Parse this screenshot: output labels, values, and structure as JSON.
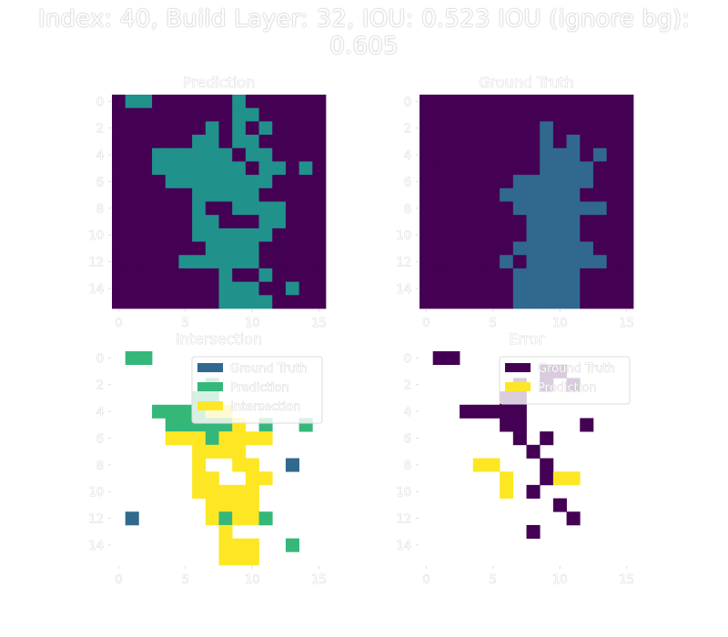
{
  "figure": {
    "suptitle": "Index: 40, Build Layer: 32, IOU: 0.523 IOU (ignore bg): 0.605",
    "text_color": "#ffffff",
    "text_outline": "#bdbdbd"
  },
  "chart_data": [
    {
      "type": "heatmap",
      "title": "Prediction",
      "rows": 16,
      "cols": 16,
      "xlim": [
        -0.5,
        15.5
      ],
      "ylim": [
        15.5,
        -0.5
      ],
      "xticks": [
        0,
        5,
        10,
        15
      ],
      "yticks": [
        0,
        2,
        4,
        6,
        8,
        10,
        12,
        14
      ],
      "colors": {
        "0": "#440154",
        "1": "#21918c"
      },
      "grid": [
        "0110000001000000",
        "0000000001100000",
        "0000000101010000",
        "0000001101100000",
        "0001111110110000",
        "0001111111011010",
        "0000111111110000",
        "0000001111100000",
        "0000001001111000",
        "0000001100011000",
        "0000001111110000",
        "0000000111100000",
        "0000011111100000",
        "0000000010010000",
        "0000000011100100",
        "0000000011110000"
      ]
    },
    {
      "type": "heatmap",
      "title": "Ground Truth",
      "rows": 16,
      "cols": 16,
      "xlim": [
        -0.5,
        15.5
      ],
      "ylim": [
        15.5,
        -0.5
      ],
      "xticks": [
        0,
        5,
        10,
        15
      ],
      "yticks": [
        0,
        2,
        4,
        6,
        8,
        10,
        12,
        14
      ],
      "colors": {
        "0": "#440154",
        "1": "#31688e"
      },
      "grid": [
        "0000000000000000",
        "0000000000000000",
        "0000000001000000",
        "0000000001010000",
        "0000000001110100",
        "0000000001111000",
        "0000000111111000",
        "0000001111110000",
        "0000000111111100",
        "0000000011110000",
        "0000000011110000",
        "0000000111111000",
        "0000001011111100",
        "0000000111110000",
        "0000000111110000",
        "0000000111110000"
      ]
    },
    {
      "type": "heatmap",
      "title": "Intersection",
      "rows": 16,
      "cols": 16,
      "xlim": [
        -0.5,
        15.5
      ],
      "ylim": [
        15.5,
        -0.5
      ],
      "xticks": [
        0,
        5,
        10,
        15
      ],
      "yticks": [
        0,
        2,
        4,
        6,
        8,
        10,
        12,
        14
      ],
      "colors": {
        "0": "#ffffff",
        "1": "#31688e",
        "2": "#35b779",
        "3": "#fde725"
      },
      "legend": [
        "Ground Truth",
        "Prediction",
        "Intersection"
      ],
      "legend_position": "upper right",
      "grid": [
        "0220000000000000",
        "0000000000000000",
        "0000000200000000",
        "0000002200000000",
        "0002222330000000",
        "0000222223020020",
        "0000333233330000",
        "0000003333000000",
        "0000003003300100",
        "0000003300330000",
        "0000003333300000",
        "0000000333300000",
        "0100000323320000",
        "0000000030000000",
        "0000000033300200",
        "0000000033300000"
      ]
    },
    {
      "type": "heatmap",
      "title": "Error",
      "rows": 16,
      "cols": 16,
      "xlim": [
        -0.5,
        15.5
      ],
      "ylim": [
        15.5,
        -0.5
      ],
      "xticks": [
        0,
        5,
        10,
        15
      ],
      "yticks": [
        0,
        2,
        4,
        6,
        8,
        10,
        12,
        14
      ],
      "colors": {
        "0": "#ffffff",
        "1": "#440154",
        "2": "#fde725"
      },
      "legend": [
        "Ground Truth",
        "Prediction"
      ],
      "legend_position": "upper right",
      "grid": [
        "0110000000000000",
        "0000000001100000",
        "0000000101010000",
        "0000001100000000",
        "0001111100000000",
        "0000001100001000",
        "0000000101000000",
        "0000000010000000",
        "0000220001000000",
        "0000002001220000",
        "0000002010000000",
        "0000000000100000",
        "0000000000010000",
        "0000000010000000",
        "0000000000000000",
        "0000000000000000"
      ]
    }
  ]
}
